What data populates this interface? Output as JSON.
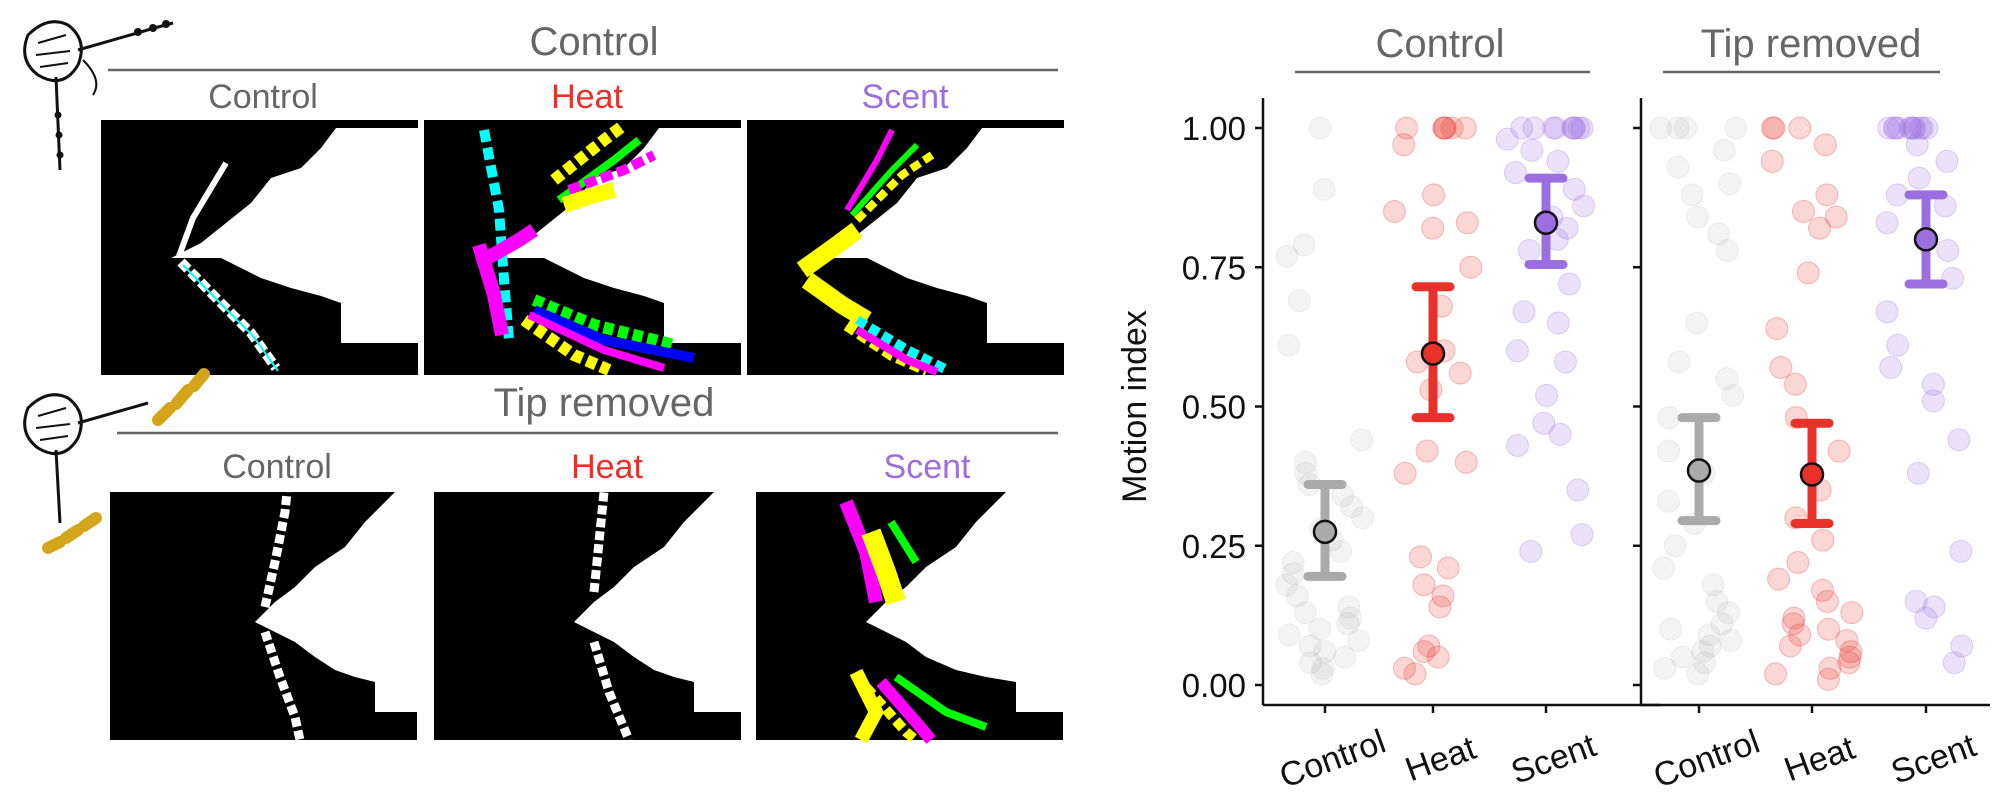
{
  "figure": {
    "left": {
      "rows": [
        {
          "title": "Control",
          "panels": [
            {
              "label": "Control",
              "color": "#666666"
            },
            {
              "label": "Heat",
              "color": "#e8312a"
            },
            {
              "label": "Scent",
              "color": "#9b6fe0"
            }
          ]
        },
        {
          "title": "Tip removed",
          "panels": [
            {
              "label": "Control",
              "color": "#666666"
            },
            {
              "label": "Heat",
              "color": "#e8312a"
            },
            {
              "label": "Scent",
              "color": "#9b6fe0"
            }
          ]
        }
      ],
      "colors": {
        "background": "#000000",
        "animal": "#ffffff",
        "antenna_tip": "#d4a41a",
        "overlays": [
          "#ff00ff",
          "#ffff00",
          "#00ffff",
          "#00ff00",
          "#0000ff"
        ]
      }
    }
  },
  "chart_data": {
    "type": "scatter",
    "ylabel": "Motion index",
    "ylim": [
      0,
      1.05
    ],
    "yticks": [
      "0.00",
      "0.25",
      "0.50",
      "0.75",
      "1.00"
    ],
    "categories": [
      "Control",
      "Heat",
      "Scent"
    ],
    "colors": {
      "Control": "#aaaaaa",
      "Heat": "#e8312a",
      "Scent": "#9b6fe0"
    },
    "facets": [
      {
        "title": "Control",
        "groups": [
          {
            "category": "Control",
            "mean": 0.275,
            "lower": 0.195,
            "upper": 0.36,
            "points": [
              1.0,
              0.89,
              0.79,
              0.77,
              0.69,
              0.61,
              0.44,
              0.4,
              0.38,
              0.36,
              0.34,
              0.32,
              0.3,
              0.28,
              0.26,
              0.24,
              0.22,
              0.2,
              0.18,
              0.16,
              0.14,
              0.13,
              0.12,
              0.11,
              0.1,
              0.09,
              0.08,
              0.07,
              0.06,
              0.05,
              0.04,
              0.03,
              0.02
            ]
          },
          {
            "category": "Heat",
            "mean": 0.595,
            "lower": 0.48,
            "upper": 0.715,
            "points": [
              1.0,
              1.0,
              1.0,
              1.0,
              1.0,
              1.0,
              0.97,
              0.88,
              0.85,
              0.83,
              0.82,
              0.75,
              0.68,
              0.6,
              0.58,
              0.56,
              0.53,
              0.42,
              0.4,
              0.38,
              0.23,
              0.21,
              0.18,
              0.16,
              0.14,
              0.07,
              0.06,
              0.05,
              0.03,
              0.02
            ]
          },
          {
            "category": "Scent",
            "mean": 0.83,
            "lower": 0.755,
            "upper": 0.91,
            "points": [
              1.0,
              1.0,
              1.0,
              1.0,
              1.0,
              1.0,
              1.0,
              1.0,
              1.0,
              0.98,
              0.96,
              0.94,
              0.92,
              0.89,
              0.86,
              0.84,
              0.82,
              0.8,
              0.78,
              0.72,
              0.67,
              0.65,
              0.6,
              0.58,
              0.52,
              0.47,
              0.45,
              0.43,
              0.35,
              0.27,
              0.24
            ]
          }
        ]
      },
      {
        "title": "Tip removed",
        "groups": [
          {
            "category": "Control",
            "mean": 0.385,
            "lower": 0.295,
            "upper": 0.48,
            "points": [
              1.0,
              1.0,
              1.0,
              1.0,
              0.96,
              0.93,
              0.9,
              0.88,
              0.84,
              0.81,
              0.78,
              0.65,
              0.58,
              0.55,
              0.52,
              0.48,
              0.42,
              0.38,
              0.33,
              0.29,
              0.25,
              0.21,
              0.18,
              0.15,
              0.13,
              0.11,
              0.1,
              0.09,
              0.08,
              0.07,
              0.06,
              0.05,
              0.04,
              0.03,
              0.02
            ]
          },
          {
            "category": "Heat",
            "mean": 0.378,
            "lower": 0.29,
            "upper": 0.47,
            "points": [
              1.0,
              1.0,
              1.0,
              0.97,
              0.94,
              0.88,
              0.85,
              0.84,
              0.82,
              0.74,
              0.64,
              0.57,
              0.54,
              0.48,
              0.42,
              0.35,
              0.3,
              0.26,
              0.22,
              0.19,
              0.17,
              0.15,
              0.13,
              0.12,
              0.11,
              0.1,
              0.09,
              0.08,
              0.07,
              0.06,
              0.05,
              0.04,
              0.03,
              0.02,
              0.01
            ]
          },
          {
            "category": "Scent",
            "mean": 0.8,
            "lower": 0.72,
            "upper": 0.88,
            "points": [
              1.0,
              1.0,
              1.0,
              1.0,
              1.0,
              1.0,
              1.0,
              1.0,
              1.0,
              1.0,
              1.0,
              0.97,
              0.94,
              0.91,
              0.88,
              0.86,
              0.83,
              0.78,
              0.73,
              0.67,
              0.61,
              0.57,
              0.54,
              0.51,
              0.44,
              0.38,
              0.24,
              0.15,
              0.14,
              0.12,
              0.07,
              0.04
            ]
          }
        ]
      }
    ]
  }
}
